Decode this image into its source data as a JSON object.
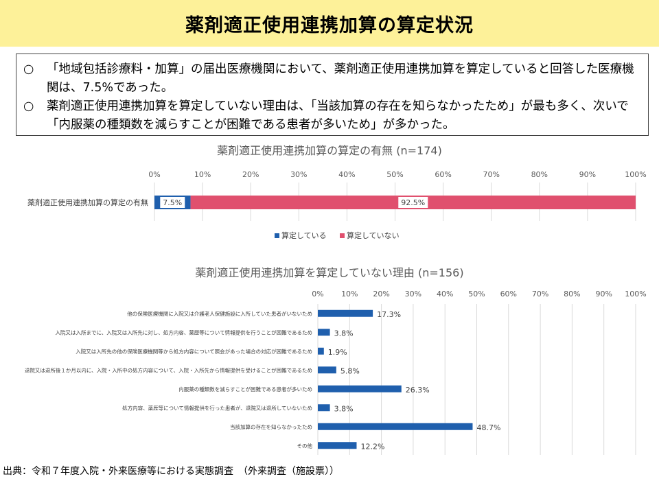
{
  "header": {
    "title": "薬剤適正使用連携加算の算定状況"
  },
  "summary": {
    "bullets": [
      {
        "mark": "○",
        "text": "「地域包括診療料・加算」の届出医療機関において、薬剤適正使用連携加算を算定していると回答した医療機関は、7.5%であった。"
      },
      {
        "mark": "○",
        "text": "薬剤適正使用連携加算を算定していない理由は、「当該加算の存在を知らなかったため」が最も多く、次いで「内服薬の種類数を減らすことが困難である患者が多いため」が多かった。"
      }
    ]
  },
  "chart_data": [
    {
      "type": "bar",
      "orientation": "horizontal",
      "stacked": true,
      "title": "薬剤適正使用連携加算の算定の有無 (n=174)",
      "categories": [
        "薬剤適正使用連携加算の算定の有無"
      ],
      "series": [
        {
          "name": "算定している",
          "values": [
            7.5
          ],
          "label": "7.5%",
          "color": "#1f5fad"
        },
        {
          "name": "算定していない",
          "values": [
            92.5
          ],
          "label": "92.5%",
          "color": "#e0506e"
        }
      ],
      "xlim": [
        0,
        100
      ],
      "xticks": [
        "0%",
        "10%",
        "20%",
        "30%",
        "40%",
        "50%",
        "60%",
        "70%",
        "80%",
        "90%",
        "100%"
      ],
      "grid": true,
      "legend": "bottom"
    },
    {
      "type": "bar",
      "orientation": "horizontal",
      "title": "薬剤適正使用連携加算を算定していない理由 (n=156)",
      "categories": [
        "他の保険医療機関に入院又は介護老人保健施設に入所していた患者がいないため",
        "入院又は入所までに、入院又は入所先に対し、処方内容、薬歴等について情報提供を行うことが困難であるため",
        "入院又は入所先の他の保険医療機関等から処方内容について照会があった場合の対応が困難であるため",
        "退院又は退所後１か月以内に、入院・入所中の処方内容について、入院・入所先から情報提供を受けることが困難であるため",
        "内服薬の種類数を減らすことが困難である患者が多いため",
        "処方内容、薬歴等について情報提供を行った患者が、退院又は退所していないため",
        "当該加算の存在を知らなかったため",
        "その他"
      ],
      "values": [
        17.3,
        3.8,
        1.9,
        5.8,
        26.3,
        3.8,
        48.7,
        12.2
      ],
      "labels": [
        "17.3%",
        "3.8%",
        "1.9%",
        "5.8%",
        "26.3%",
        "3.8%",
        "48.7%",
        "12.2%"
      ],
      "color": "#1f5fad",
      "xlim": [
        0,
        100
      ],
      "xticks": [
        "0%",
        "10%",
        "20%",
        "30%",
        "40%",
        "50%",
        "60%",
        "70%",
        "80%",
        "90%",
        "100%"
      ],
      "grid": true
    }
  ],
  "footer": {
    "source": "出典：令和７年度入院・外来医療等における実態調査　（外来調査（施設票））"
  }
}
